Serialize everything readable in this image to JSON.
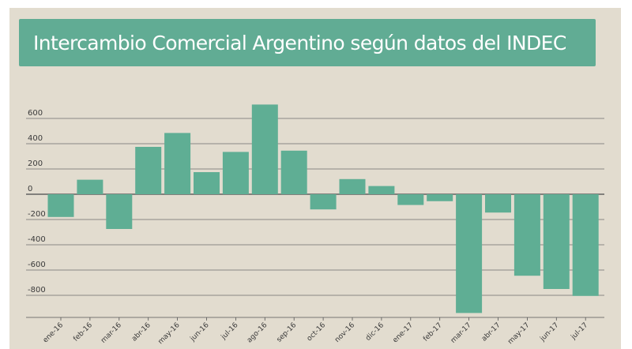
{
  "chart_data": {
    "type": "bar",
    "title": "Intercambio Comercial Argentino según datos del INDEC",
    "xlabel": "",
    "ylabel": "",
    "categories": [
      "ene-16",
      "feb-16",
      "mar-16",
      "abr-16",
      "may-16",
      "jun-16",
      "jul-16",
      "ago-16",
      "sep-16",
      "oct-16",
      "nov-16",
      "dic-16",
      "ene-17",
      "feb-17",
      "mar-17",
      "abr-17",
      "may-17",
      "jun-17",
      "jul-17"
    ],
    "values": [
      -180,
      115,
      -275,
      375,
      485,
      175,
      335,
      710,
      345,
      -120,
      120,
      65,
      -85,
      -55,
      -940,
      -145,
      -645,
      -750,
      -805
    ],
    "yticks": [
      600,
      400,
      200,
      0,
      -200,
      -400,
      -600,
      -800
    ],
    "ylim": [
      -960,
      790
    ],
    "grid": true,
    "legend": "none",
    "colors": {
      "bar": "#5fae94",
      "banner": "#61ac94",
      "background": "#e2dccf",
      "grid": "#6e6e6e"
    }
  }
}
